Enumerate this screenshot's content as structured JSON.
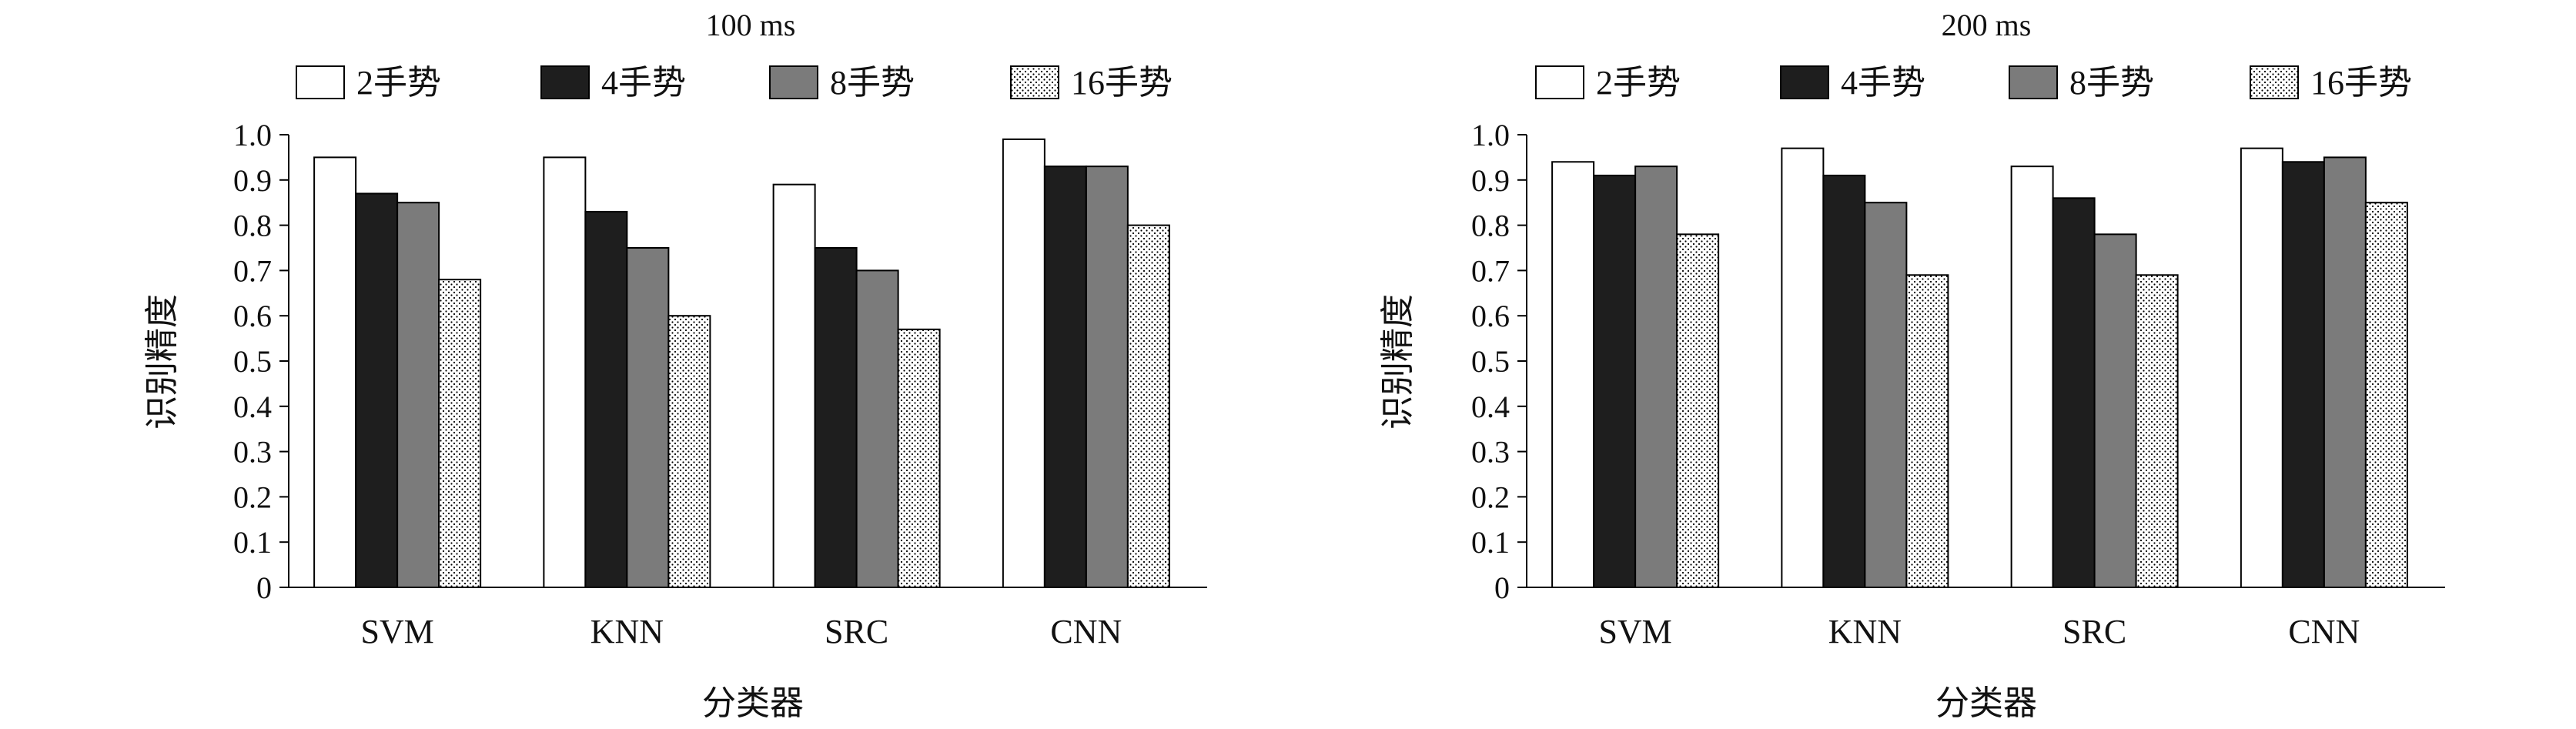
{
  "colors": {
    "2手势": "#ffffff",
    "4手势": "#1e1e1e",
    "8手势": "#7b7b7b",
    "16手势": "dots",
    "stroke": "#000000"
  },
  "chart_data": [
    {
      "type": "bar",
      "title": "100 ms",
      "xlabel": "分类器",
      "ylabel": "识别精度",
      "ylim": [
        0,
        1.0
      ],
      "yticks": [
        "0",
        "0.1",
        "0.2",
        "0.3",
        "0.4",
        "0.5",
        "0.6",
        "0.7",
        "0.8",
        "0.9",
        "1.0"
      ],
      "categories": [
        "SVM",
        "KNN",
        "SRC",
        "CNN"
      ],
      "legend_position": "top",
      "grid": false,
      "series": [
        {
          "name": "2手势",
          "values": [
            0.95,
            0.95,
            0.89,
            0.99
          ]
        },
        {
          "name": "4手势",
          "values": [
            0.87,
            0.83,
            0.75,
            0.93
          ]
        },
        {
          "name": "8手势",
          "values": [
            0.85,
            0.75,
            0.7,
            0.93
          ]
        },
        {
          "name": "16手势",
          "values": [
            0.68,
            0.6,
            0.57,
            0.8
          ]
        }
      ]
    },
    {
      "type": "bar",
      "title": "200 ms",
      "xlabel": "分类器",
      "ylabel": "识别精度",
      "ylim": [
        0,
        1.0
      ],
      "yticks": [
        "0",
        "0.1",
        "0.2",
        "0.3",
        "0.4",
        "0.5",
        "0.6",
        "0.7",
        "0.8",
        "0.9",
        "1.0"
      ],
      "categories": [
        "SVM",
        "KNN",
        "SRC",
        "CNN"
      ],
      "legend_position": "top",
      "grid": false,
      "series": [
        {
          "name": "2手势",
          "values": [
            0.94,
            0.97,
            0.93,
            0.97
          ]
        },
        {
          "name": "4手势",
          "values": [
            0.91,
            0.91,
            0.86,
            0.94
          ]
        },
        {
          "name": "8手势",
          "values": [
            0.93,
            0.85,
            0.78,
            0.95
          ]
        },
        {
          "name": "16手势",
          "values": [
            0.78,
            0.69,
            0.69,
            0.85
          ]
        }
      ]
    }
  ]
}
